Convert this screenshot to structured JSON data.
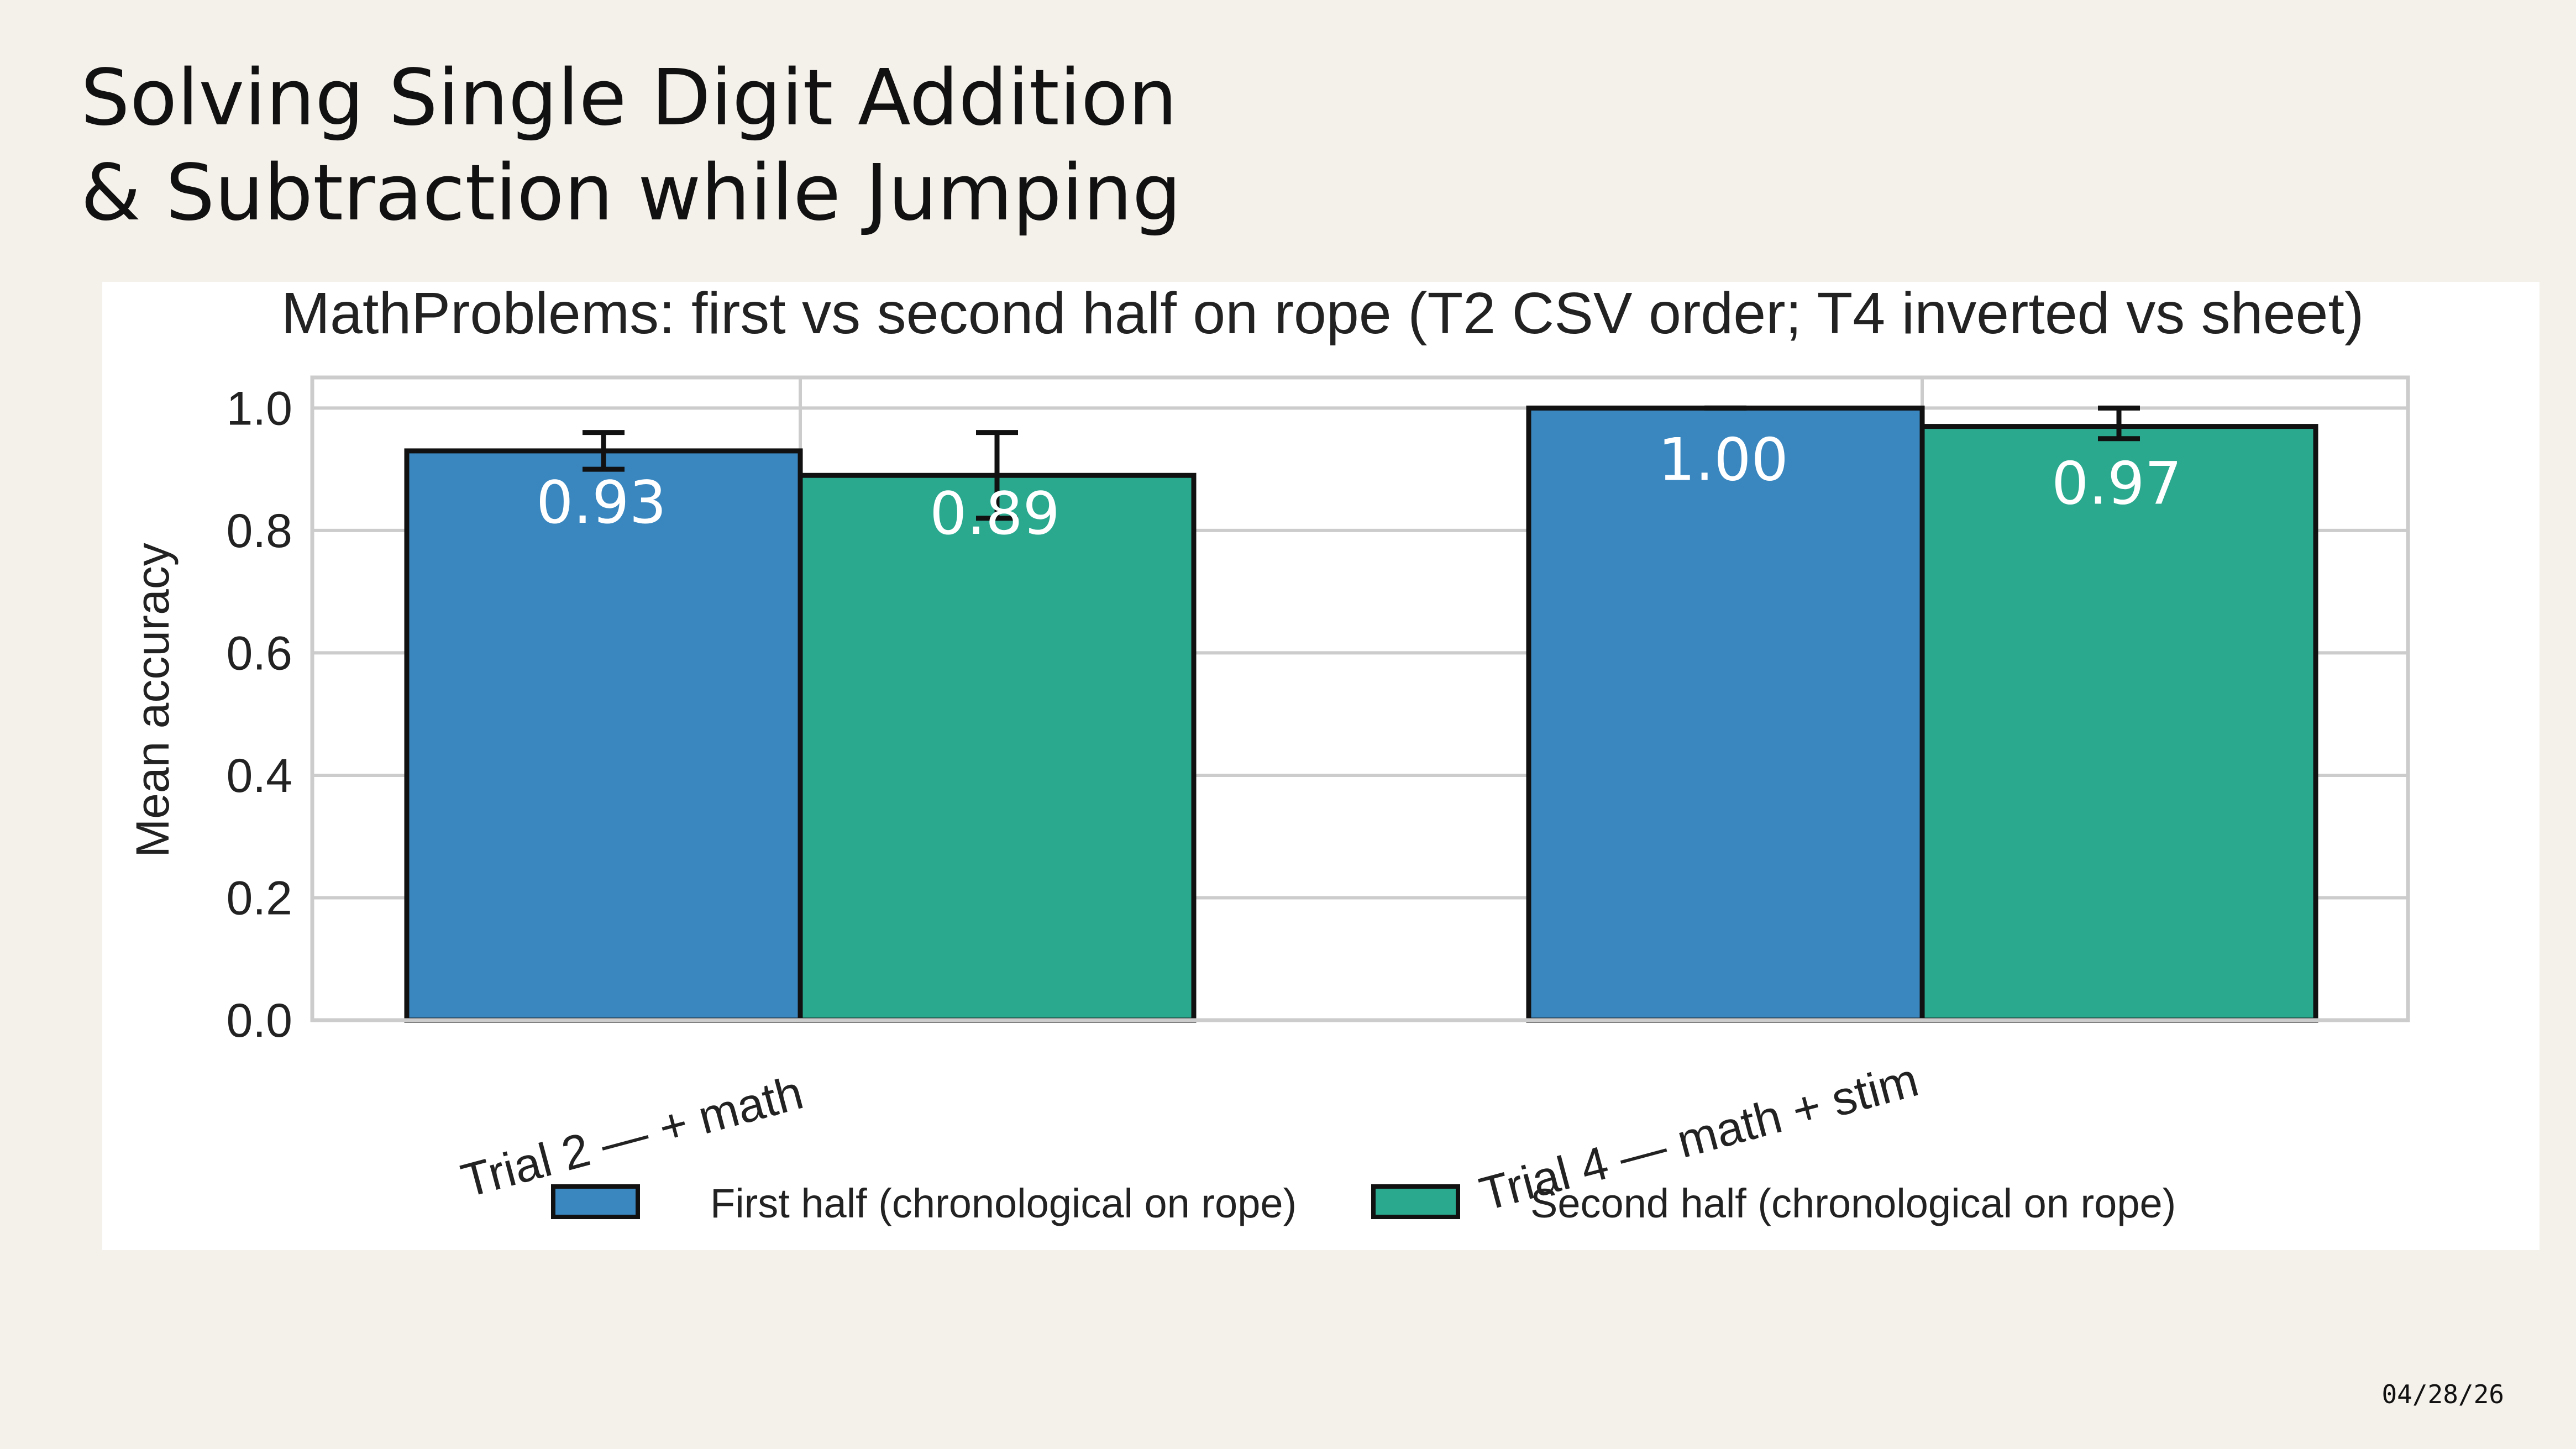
{
  "slide": {
    "title_line_1": "Solving Single Digit Addition",
    "title_line_2": "& Subtraction while Jumping",
    "date": "04/28/26"
  },
  "chart_data": {
    "type": "bar",
    "title": "MathProblems: first vs second half on rope (T2 CSV order; T4 inverted vs sheet)",
    "xlabel": "",
    "ylabel": "Mean accuracy",
    "ylim": [
      0,
      1.05
    ],
    "yticks": [
      "0.0",
      "0.2",
      "0.4",
      "0.6",
      "0.8",
      "1.0"
    ],
    "grid": true,
    "legend_position": "bottom-center",
    "categories": [
      "Trial 2 — + math",
      "Trial 4 — math + stim"
    ],
    "series": [
      {
        "name": "First half (chronological on rope)",
        "color": "#3a87c0",
        "values": [
          0.93,
          1.0
        ],
        "value_labels": [
          "0.93",
          "1.00"
        ],
        "error_low": [
          0.9,
          1.0
        ],
        "error_high": [
          0.96,
          1.0
        ]
      },
      {
        "name": "Second half (chronological on rope)",
        "color": "#2ba98f",
        "values": [
          0.89,
          0.97
        ],
        "value_labels": [
          "0.89",
          "0.97"
        ],
        "error_low": [
          0.82,
          0.95
        ],
        "error_high": [
          0.96,
          1.0
        ]
      }
    ]
  }
}
